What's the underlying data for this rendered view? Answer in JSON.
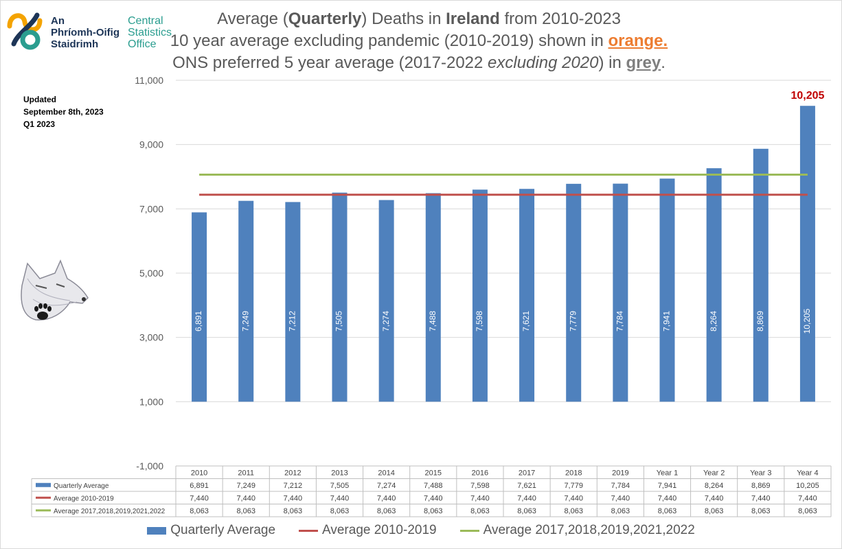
{
  "logo": {
    "irish_line1": "An",
    "irish_line2": "Phríomh-Oifig",
    "irish_line3": "Staidrimh",
    "english_line1": "Central",
    "english_line2": "Statistics",
    "english_line3": "Office"
  },
  "title": {
    "l1_a": "Average (",
    "l1_b": "Quarterly",
    "l1_c": ") Deaths in ",
    "l1_d": "Ireland",
    "l1_e": " from 2010-2023",
    "l2_a": "10 year average excluding pandemic (2010-2019) shown in ",
    "l2_b": "orange.",
    "l3_a": "ONS preferred 5 year average (2017-2022 ",
    "l3_b": "excluding 2020",
    "l3_c": ") in ",
    "l3_d": "grey",
    "l3_e": "."
  },
  "note": {
    "line1": "Updated",
    "line2": "September 8th, 2023",
    "line3": "Q1 2023"
  },
  "chart_data": {
    "type": "bar",
    "categories": [
      "2010",
      "2011",
      "2012",
      "2013",
      "2014",
      "2015",
      "2016",
      "2017",
      "2018",
      "2019",
      "Year 1",
      "Year 2",
      "Year 3",
      "Year 4"
    ],
    "series": [
      {
        "name": "Quarterly Average",
        "type": "bar",
        "color": "#4f81bd",
        "values": [
          6891,
          7249,
          7212,
          7505,
          7274,
          7488,
          7598,
          7621,
          7779,
          7784,
          7941,
          8264,
          8869,
          10205
        ],
        "labels": [
          "6,891",
          "7,249",
          "7,212",
          "7,505",
          "7,274",
          "7,488",
          "7,598",
          "7,621",
          "7,779",
          "7,784",
          "7,941",
          "8,264",
          "8,869",
          "10,205"
        ]
      },
      {
        "name": "Average 2010-2019",
        "type": "line",
        "color": "#c0504d",
        "values": [
          7440,
          7440,
          7440,
          7440,
          7440,
          7440,
          7440,
          7440,
          7440,
          7440,
          7440,
          7440,
          7440,
          7440
        ],
        "labels": [
          "7,440",
          "7,440",
          "7,440",
          "7,440",
          "7,440",
          "7,440",
          "7,440",
          "7,440",
          "7,440",
          "7,440",
          "7,440",
          "7,440",
          "7,440",
          "7,440"
        ]
      },
      {
        "name": "Average 2017,2018,2019,2021,2022",
        "type": "line",
        "color": "#9bbb59",
        "values": [
          8063,
          8063,
          8063,
          8063,
          8063,
          8063,
          8063,
          8063,
          8063,
          8063,
          8063,
          8063,
          8063,
          8063
        ],
        "labels": [
          "8,063",
          "8,063",
          "8,063",
          "8,063",
          "8,063",
          "8,063",
          "8,063",
          "8,063",
          "8,063",
          "8,063",
          "8,063",
          "8,063",
          "8,063",
          "8,063"
        ]
      }
    ],
    "ylim": [
      -1000,
      11000
    ],
    "yticks": [
      -1000,
      1000,
      3000,
      5000,
      7000,
      9000,
      11000
    ],
    "ytick_labels": [
      "-1,000",
      "1,000",
      "3,000",
      "5,000",
      "7,000",
      "9,000",
      "11,000"
    ],
    "highlight": {
      "label": "10,205",
      "color": "#c00000"
    },
    "grid": true,
    "legend_position": "bottom",
    "data_table": true
  }
}
